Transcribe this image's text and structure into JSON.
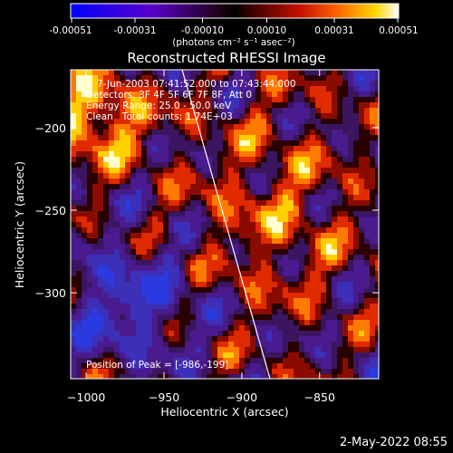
{
  "figure": {
    "title": "Reconstructed RHESSI Image",
    "colorbar": {
      "tick_labels": [
        "-0.00051",
        "-0.00031",
        "-0.00010",
        "0.00010",
        "0.00031",
        "0.00051"
      ],
      "units_label": "(photons cm⁻² s⁻¹ asec⁻²)"
    },
    "info_lines": [
      "7-Jun-2003 07:41:52.000 to 07:43:44.000",
      "Detectors: 3F 4F 5F 6F 7F 8F, Att 0",
      "Energy Range: 25.0 - 50.0 keV",
      "Clean   Total counts: 1.74E+03"
    ],
    "peak_text": "Position of Peak = [-986,-199]",
    "timestamp": "2-May-2022 08:55"
  },
  "chart_data": {
    "type": "heatmap",
    "title": "Reconstructed RHESSI Image",
    "xlabel": "Heliocentric X (arcsec)",
    "ylabel": "Heliocentric Y (arcsec)",
    "x_ticks": [
      -1000,
      -950,
      -900,
      -850
    ],
    "y_ticks": [
      -200,
      -250,
      -300
    ],
    "xlim": [
      -1010,
      -812
    ],
    "ylim": [
      -352,
      -165
    ],
    "color_range": [
      -0.00051,
      0.00051
    ],
    "colormap": "blue-purple-black-red-orange-yellow-white",
    "peak_position": [
      -986,
      -199
    ]
  }
}
